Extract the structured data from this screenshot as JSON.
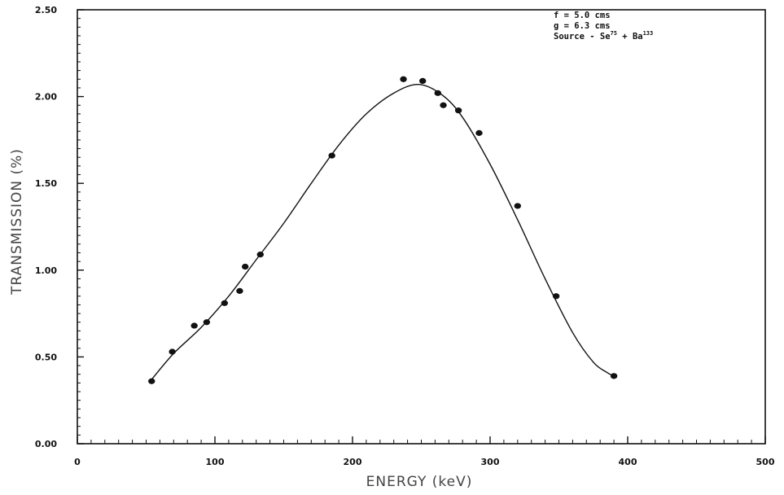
{
  "chart_data": {
    "type": "scatter",
    "xlabel": "ENERGY (keV)",
    "ylabel": "TRANSMISSION (%)",
    "xlim": [
      0,
      500
    ],
    "ylim": [
      0,
      2.5
    ],
    "xticks": [
      "0",
      "100",
      "200",
      "300",
      "400",
      "500"
    ],
    "yticks": [
      "0.00",
      "0.50",
      "1.00",
      "1.50",
      "2.00",
      "2.50"
    ],
    "annotation": {
      "line1": "f = 5.0 cms",
      "line2": "g = 6.3 cms",
      "line3_prefix": "Source - Se",
      "line3_sup1": "75",
      "line3_mid": " + Ba",
      "line3_sup2": "133"
    },
    "points": [
      {
        "x": 54,
        "y": 0.36
      },
      {
        "x": 69,
        "y": 0.53
      },
      {
        "x": 85,
        "y": 0.68
      },
      {
        "x": 94,
        "y": 0.7
      },
      {
        "x": 107,
        "y": 0.81
      },
      {
        "x": 118,
        "y": 0.88
      },
      {
        "x": 122,
        "y": 1.02
      },
      {
        "x": 133,
        "y": 1.09
      },
      {
        "x": 185,
        "y": 1.66
      },
      {
        "x": 237,
        "y": 2.1
      },
      {
        "x": 251,
        "y": 2.09
      },
      {
        "x": 262,
        "y": 2.02
      },
      {
        "x": 266,
        "y": 1.95
      },
      {
        "x": 277,
        "y": 1.92
      },
      {
        "x": 292,
        "y": 1.79
      },
      {
        "x": 320,
        "y": 1.37
      },
      {
        "x": 348,
        "y": 0.85
      },
      {
        "x": 390,
        "y": 0.39
      }
    ],
    "fit_curve": [
      [
        54,
        0.37
      ],
      [
        70,
        0.52
      ],
      [
        90,
        0.67
      ],
      [
        110,
        0.85
      ],
      [
        130,
        1.06
      ],
      [
        150,
        1.27
      ],
      [
        170,
        1.5
      ],
      [
        190,
        1.72
      ],
      [
        210,
        1.9
      ],
      [
        230,
        2.02
      ],
      [
        248,
        2.07
      ],
      [
        265,
        2.01
      ],
      [
        280,
        1.88
      ],
      [
        300,
        1.61
      ],
      [
        320,
        1.29
      ],
      [
        340,
        0.95
      ],
      [
        360,
        0.64
      ],
      [
        375,
        0.47
      ],
      [
        385,
        0.41
      ],
      [
        390,
        0.39
      ]
    ]
  }
}
